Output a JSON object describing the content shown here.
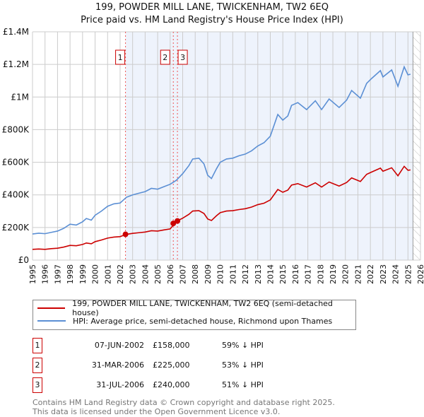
{
  "chart_data": {
    "type": "line",
    "title": "199, POWDER MILL LANE, TWICKENHAM, TW2 6EQ",
    "subtitle": "Price paid vs. HM Land Registry's House Price Index (HPI)",
    "xlim": [
      1995,
      2026
    ],
    "ylim": [
      0,
      1400000
    ],
    "x_ticks": [
      "1995",
      "1996",
      "1997",
      "1998",
      "1999",
      "2000",
      "2001",
      "2002",
      "2003",
      "2004",
      "2005",
      "2006",
      "2007",
      "2008",
      "2009",
      "2010",
      "2011",
      "2012",
      "2013",
      "2014",
      "2015",
      "2016",
      "2017",
      "2018",
      "2019",
      "2020",
      "2021",
      "2022",
      "2023",
      "2024",
      "2025",
      "2026"
    ],
    "y_ticks": [
      {
        "v": 0,
        "label": "£0"
      },
      {
        "v": 200000,
        "label": "£200K"
      },
      {
        "v": 400000,
        "label": "£400K"
      },
      {
        "v": 600000,
        "label": "£600K"
      },
      {
        "v": 800000,
        "label": "£800K"
      },
      {
        "v": 1000000,
        "label": "£1M"
      },
      {
        "v": 1200000,
        "label": "£1.2M"
      },
      {
        "v": 1400000,
        "label": "£1.4M"
      }
    ],
    "grid": true,
    "shaded_from": 2002.43,
    "hatched_from": 2025.4,
    "x": [
      1995.0,
      1995.5,
      1996,
      1996.5,
      1997,
      1997.5,
      1998,
      1998.5,
      1999,
      1999.3,
      1999.7,
      2000,
      2000.5,
      2001,
      2001.5,
      2002,
      2002.5,
      2003,
      2003.5,
      2004,
      2004.5,
      2005,
      2005.5,
      2006,
      2006.5,
      2007,
      2007.5,
      2007.8,
      2008.3,
      2008.7,
      2009.0,
      2009.3,
      2009.7,
      2010,
      2010.5,
      2011,
      2011.5,
      2012,
      2012.5,
      2013,
      2013.5,
      2014,
      2014.6,
      2015,
      2015.4,
      2015.7,
      2016.2,
      2016.9,
      2017.6,
      2018.1,
      2018.7,
      2019.5,
      2020.1,
      2020.5,
      2021.2,
      2021.7,
      2022.1,
      2022.8,
      2023.0,
      2023.7,
      2024.2,
      2024.7,
      2025.0,
      2025.2
    ],
    "series": [
      {
        "name": "199, POWDER MILL LANE, TWICKENHAM, TW2 6EQ (semi-detached house)",
        "color": "#cc0000",
        "values": [
          66000,
          68000,
          66000,
          70000,
          73000,
          80000,
          90000,
          88000,
          96000,
          105000,
          100000,
          113000,
          123000,
          135000,
          141000,
          144000,
          158000,
          164000,
          168000,
          172000,
          180000,
          178000,
          185000,
          191000,
          238000,
          257000,
          281000,
          301000,
          303000,
          286000,
          252000,
          243000,
          272000,
          291000,
          301000,
          303000,
          310000,
          315000,
          325000,
          340000,
          349000,
          369000,
          433000,
          416000,
          429000,
          460000,
          469000,
          448000,
          474000,
          448000,
          479000,
          454000,
          476000,
          504000,
          482000,
          526000,
          540000,
          564000,
          545000,
          566000,
          517000,
          575000,
          551000,
          553000
        ]
      },
      {
        "name": "HPI: Average price, semi-detached house, Richmond upon Thames",
        "color": "#5b8fd4",
        "values": [
          160000,
          165000,
          162000,
          170000,
          178000,
          195000,
          220000,
          215000,
          235000,
          255000,
          245000,
          275000,
          300000,
          330000,
          345000,
          350000,
          385000,
          400000,
          410000,
          420000,
          440000,
          435000,
          450000,
          465000,
          490000,
          530000,
          580000,
          620000,
          625000,
          590000,
          520000,
          500000,
          560000,
          600000,
          620000,
          625000,
          640000,
          650000,
          670000,
          700000,
          720000,
          760000,
          893000,
          858000,
          884000,
          949000,
          966000,
          923000,
          977000,
          923000,
          988000,
          936000,
          981000,
          1040000,
          993000,
          1084000,
          1114000,
          1162000,
          1123000,
          1166000,
          1066000,
          1185000,
          1136000,
          1140000
        ]
      }
    ],
    "sales": [
      {
        "label": "1",
        "x": 2002.43,
        "price": 158000,
        "date": "07-JUN-2002",
        "price_text": "£158,000",
        "hpi_text": "59% ↓ HPI"
      },
      {
        "label": "2",
        "x": 2006.25,
        "price": 225000,
        "date": "31-MAR-2006",
        "price_text": "£225,000",
        "hpi_text": "53% ↓ HPI"
      },
      {
        "label": "3",
        "x": 2006.58,
        "price": 240000,
        "date": "31-JUL-2006",
        "price_text": "£240,000",
        "hpi_text": "51% ↓ HPI"
      }
    ]
  },
  "footer": {
    "line1": "Contains HM Land Registry data © Crown copyright and database right 2025.",
    "line2": "This data is licensed under the Open Government Licence v3.0."
  }
}
